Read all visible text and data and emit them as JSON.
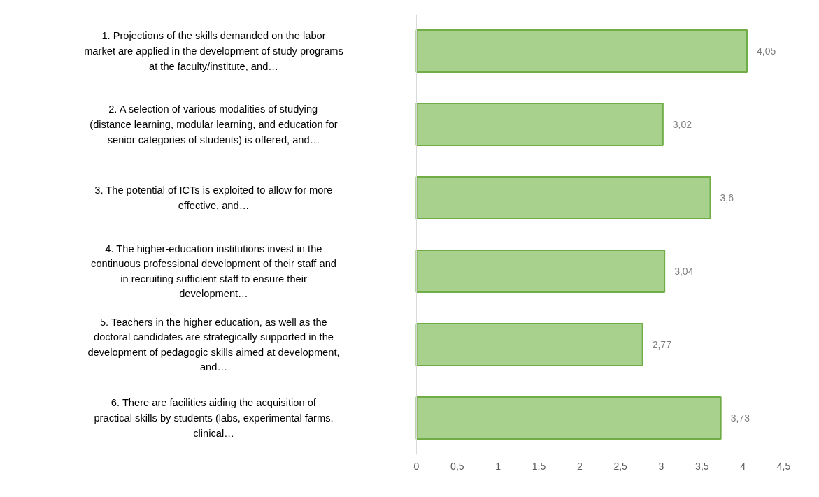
{
  "chart_data": {
    "type": "bar",
    "orientation": "horizontal",
    "categories": [
      "1. Projections of the skills demanded on the labor market are applied in the development of study programs at the faculty/institute, and…",
      "2. A selection of various modalities of studying (distance learning, modular learning, and education for senior categories of students) is offered, and…",
      "3. The potential of ICTs is exploited to allow for more effective, and…",
      "4. The higher-education institutions invest in the continuous professional development of their staff and in recruiting sufficient staff to ensure their development…",
      "5. Teachers in the higher education, as well as the doctoral candidates are strategically supported in the development of pedagogic skills aimed at development, and…",
      "6. There are facilities aiding the acquisition of practical skills by students (labs, experimental farms, clinical…"
    ],
    "values": [
      4.05,
      3.02,
      3.6,
      3.04,
      2.77,
      3.73
    ],
    "value_labels": [
      "4,05",
      "3,02",
      "3,6",
      "3,04",
      "2,77",
      "3,73"
    ],
    "color": "#a9d18e",
    "xlim": [
      0,
      4.5
    ],
    "xticks": [
      0,
      {
        "value": 0.5,
        "label": "0,5"
      },
      1,
      {
        "value": 1.5,
        "label": "1,5"
      },
      2,
      {
        "value": 2.5,
        "label": "2,5"
      },
      3,
      {
        "value": 3.5,
        "label": "3,5"
      },
      4,
      {
        "value": 4.5,
        "label": "4,5"
      }
    ],
    "grid": false
  }
}
